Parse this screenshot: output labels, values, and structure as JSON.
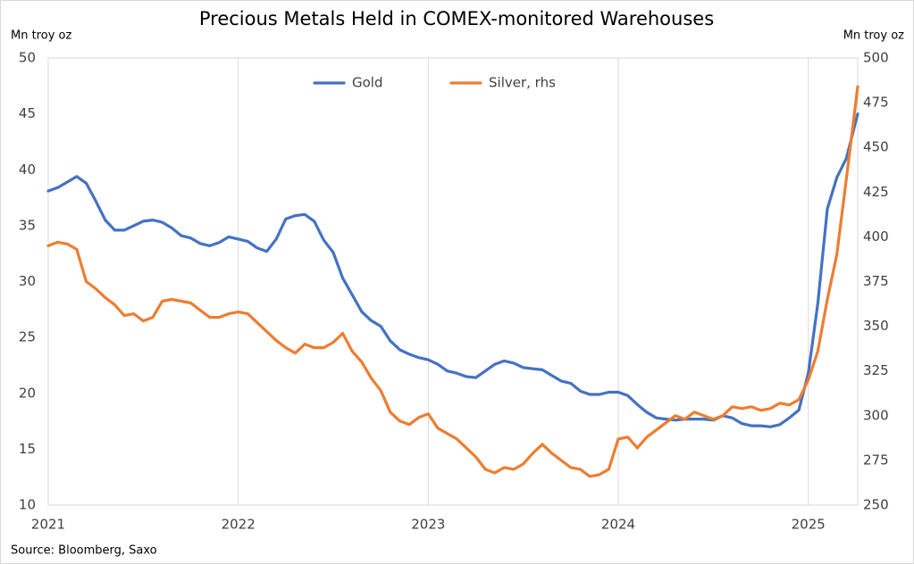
{
  "chart_data": {
    "type": "line",
    "title": "Precious Metals Held in COMEX-monitored Warehouses",
    "y_label": "Mn troy oz",
    "y2_label": "Mn troy oz",
    "source": "Source: Bloomberg, Saxo",
    "x": [
      2021,
      2021.05,
      2021.1,
      2021.15,
      2021.2,
      2021.25,
      2021.3,
      2021.35,
      2021.4,
      2021.45,
      2021.5,
      2021.55,
      2021.6,
      2021.65,
      2021.7,
      2021.75,
      2021.8,
      2021.85,
      2021.9,
      2021.95,
      2022,
      2022.05,
      2022.1,
      2022.15,
      2022.2,
      2022.25,
      2022.3,
      2022.35,
      2022.4,
      2022.45,
      2022.5,
      2022.55,
      2022.6,
      2022.65,
      2022.7,
      2022.75,
      2022.8,
      2022.85,
      2022.9,
      2022.95,
      2023,
      2023.05,
      2023.1,
      2023.15,
      2023.2,
      2023.25,
      2023.3,
      2023.35,
      2023.4,
      2023.45,
      2023.5,
      2023.55,
      2023.6,
      2023.65,
      2023.7,
      2023.75,
      2023.8,
      2023.85,
      2023.9,
      2023.95,
      2024,
      2024.05,
      2024.1,
      2024.15,
      2024.2,
      2024.25,
      2024.3,
      2024.35,
      2024.4,
      2024.45,
      2024.5,
      2024.55,
      2024.6,
      2024.65,
      2024.7,
      2024.75,
      2024.8,
      2024.85,
      2024.9,
      2024.95,
      2025,
      2025.05,
      2025.1,
      2025.15,
      2025.2,
      2025.26
    ],
    "series": [
      {
        "name": "Gold",
        "color": "#4472c4",
        "values": [
          38.1,
          38.4,
          38.9,
          39.4,
          38.8,
          37.2,
          35.5,
          34.6,
          34.6,
          35.0,
          35.4,
          35.5,
          35.3,
          34.8,
          34.1,
          33.9,
          33.4,
          33.2,
          33.5,
          34.0,
          33.8,
          33.6,
          33.0,
          32.7,
          33.8,
          35.6,
          35.9,
          36.0,
          35.4,
          33.7,
          32.6,
          30.3,
          28.8,
          27.3,
          26.5,
          26.0,
          24.7,
          23.9,
          23.5,
          23.2,
          23.0,
          22.6,
          22.0,
          21.8,
          21.5,
          21.4,
          22.0,
          22.6,
          22.9,
          22.7,
          22.3,
          22.2,
          22.1,
          21.6,
          21.1,
          20.9,
          20.2,
          19.9,
          19.9,
          20.1,
          20.1,
          19.8,
          19.0,
          18.3,
          17.8,
          17.7,
          17.6,
          17.7,
          17.7,
          17.7,
          17.6,
          18.0,
          17.8,
          17.3,
          17.1,
          17.1,
          17.0,
          17.2,
          17.8,
          18.5,
          21.8,
          28,
          36.5,
          39.3,
          41,
          45.0
        ]
      },
      {
        "name": "Silver, rhs",
        "color": "#ed7d31",
        "axis": "y2",
        "values": [
          395,
          397,
          396,
          393,
          375,
          371,
          366,
          362,
          356,
          357,
          353,
          355,
          364,
          365,
          364,
          363,
          359,
          355,
          355,
          357,
          358,
          357,
          352,
          347,
          342,
          338,
          335,
          340,
          338,
          338,
          341,
          346,
          336,
          330,
          321,
          314,
          302,
          297,
          295,
          299,
          301,
          293,
          290,
          287,
          282,
          277,
          270,
          268,
          271,
          270,
          273,
          279,
          284,
          279,
          275,
          271,
          270,
          266,
          267,
          270,
          287,
          288,
          282,
          288,
          292,
          296,
          300,
          298,
          302,
          300,
          298,
          300,
          305,
          304,
          305,
          303,
          304,
          307,
          306,
          309,
          320,
          336,
          365,
          390,
          432,
          484
        ]
      }
    ],
    "xlim": [
      2021,
      2025.26
    ],
    "xticks": [
      2021,
      2022,
      2023,
      2024,
      2025
    ],
    "ylim": [
      10,
      50
    ],
    "yticks": [
      10,
      15,
      20,
      25,
      30,
      35,
      40,
      45,
      50
    ],
    "y2lim": [
      250,
      500
    ],
    "y2ticks": [
      250,
      275,
      300,
      325,
      350,
      375,
      400,
      425,
      450,
      475,
      500
    ],
    "xgrid": true,
    "legend": "top-center"
  }
}
